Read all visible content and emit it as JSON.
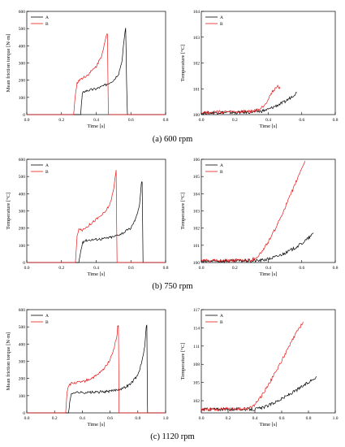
{
  "captions": [
    "(a) 600 rpm",
    "(b) 750 rpm",
    "(c) 1120 rpm"
  ],
  "colors": {
    "A": "#000000",
    "B": "#e8191b"
  },
  "chart_data": [
    {
      "type": "line",
      "panel": "a-torque",
      "xlabel": "Time [s]",
      "ylabel": "Mean friction torque [N·m]",
      "xlim": [
        0,
        0.8
      ],
      "ylim": [
        0,
        600
      ],
      "xticks": [
        0.0,
        0.2,
        0.4,
        0.6,
        0.8
      ],
      "xtick_labels": [
        "0.0",
        "0.2",
        "0.4",
        "0.6",
        "0.8"
      ],
      "yticks": [
        0,
        100,
        200,
        300,
        400,
        500,
        600
      ],
      "ytick_labels": [
        "0",
        "100",
        "200",
        "300",
        "400",
        "500",
        "600"
      ],
      "legend": "top-left",
      "series": [
        {
          "name": "A",
          "x": [
            0,
            0.31,
            0.315,
            0.32,
            0.33,
            0.35,
            0.4,
            0.45,
            0.5,
            0.53,
            0.55,
            0.56,
            0.57,
            0.575,
            0.58,
            0.8
          ],
          "y": [
            0,
            0,
            60,
            120,
            135,
            140,
            150,
            170,
            200,
            240,
            320,
            430,
            510,
            200,
            0,
            0
          ]
        },
        {
          "name": "B",
          "x": [
            0,
            0.27,
            0.28,
            0.29,
            0.3,
            0.35,
            0.4,
            0.43,
            0.45,
            0.46,
            0.465,
            0.47,
            0.8
          ],
          "y": [
            0,
            0,
            120,
            180,
            200,
            230,
            280,
            340,
            420,
            460,
            470,
            0,
            0
          ]
        }
      ]
    },
    {
      "type": "line",
      "panel": "a-temperature",
      "xlabel": "Time [s]",
      "ylabel": "Temperature [°C]",
      "xlim": [
        0,
        0.8
      ],
      "ylim": [
        100,
        104
      ],
      "xticks": [
        0.0,
        0.2,
        0.4,
        0.6,
        0.8
      ],
      "xtick_labels": [
        "0.0",
        "0.2",
        "0.4",
        "0.6",
        "0.8"
      ],
      "yticks": [
        100,
        101,
        102,
        103,
        104
      ],
      "ytick_labels": [
        "100",
        "101",
        "102",
        "103",
        "104"
      ],
      "legend": "top-left",
      "series": [
        {
          "name": "A",
          "x": [
            0,
            0.1,
            0.2,
            0.3,
            0.35,
            0.4,
            0.45,
            0.5,
            0.55,
            0.57
          ],
          "y": [
            100.05,
            100.08,
            100.08,
            100.1,
            100.12,
            100.2,
            100.35,
            100.5,
            100.75,
            100.85
          ]
        },
        {
          "name": "B",
          "x": [
            0,
            0.1,
            0.2,
            0.3,
            0.35,
            0.38,
            0.4,
            0.42,
            0.44,
            0.46,
            0.47
          ],
          "y": [
            100.08,
            100.1,
            100.1,
            100.12,
            100.2,
            100.4,
            100.6,
            100.85,
            101.0,
            101.1,
            101.0
          ]
        }
      ]
    },
    {
      "type": "line",
      "panel": "b-torque",
      "xlabel": "Time [s]",
      "ylabel": "Temperature [°C]",
      "xlim": [
        0,
        0.8
      ],
      "ylim": [
        0,
        600
      ],
      "xticks": [
        0.0,
        0.2,
        0.4,
        0.6,
        0.8
      ],
      "xtick_labels": [
        "0.0",
        "0.2",
        "0.4",
        "0.6",
        "0.8"
      ],
      "yticks": [
        0,
        100,
        200,
        300,
        400,
        500,
        600
      ],
      "ytick_labels": [
        "0",
        "100",
        "200",
        "300",
        "400",
        "500",
        "600"
      ],
      "legend": "top-left",
      "series": [
        {
          "name": "A",
          "x": [
            0,
            0.3,
            0.31,
            0.32,
            0.33,
            0.35,
            0.4,
            0.45,
            0.5,
            0.55,
            0.6,
            0.63,
            0.65,
            0.66,
            0.665,
            0.67,
            0.8
          ],
          "y": [
            0,
            0,
            60,
            110,
            125,
            130,
            135,
            140,
            150,
            170,
            200,
            260,
            340,
            460,
            470,
            0,
            0
          ]
        },
        {
          "name": "B",
          "x": [
            0,
            0.28,
            0.29,
            0.3,
            0.32,
            0.35,
            0.4,
            0.45,
            0.48,
            0.5,
            0.51,
            0.515,
            0.52,
            0.8
          ],
          "y": [
            0,
            0,
            150,
            200,
            190,
            210,
            250,
            290,
            340,
            420,
            500,
            540,
            0,
            0
          ]
        }
      ]
    },
    {
      "type": "line",
      "panel": "b-temperature",
      "xlabel": "Time [s]",
      "ylabel": "Temperature [°C]",
      "xlim": [
        0,
        0.8
      ],
      "ylim": [
        100,
        106
      ],
      "xticks": [
        0.0,
        0.2,
        0.4,
        0.6,
        0.8
      ],
      "xtick_labels": [
        "0.0",
        "0.2",
        "0.4",
        "0.6",
        "0.8"
      ],
      "yticks": [
        100,
        101,
        102,
        103,
        104,
        105,
        106
      ],
      "ytick_labels": [
        "100",
        "101",
        "102",
        "103",
        "104",
        "105",
        "106"
      ],
      "legend": "top-left",
      "series": [
        {
          "name": "A",
          "x": [
            0,
            0.1,
            0.2,
            0.3,
            0.35,
            0.4,
            0.45,
            0.5,
            0.55,
            0.6,
            0.65,
            0.67
          ],
          "y": [
            100.05,
            100.08,
            100.1,
            100.1,
            100.12,
            100.2,
            100.35,
            100.55,
            100.8,
            101.1,
            101.5,
            101.7
          ]
        },
        {
          "name": "B",
          "x": [
            0,
            0.1,
            0.2,
            0.3,
            0.33,
            0.36,
            0.4,
            0.45,
            0.5,
            0.55,
            0.6,
            0.62
          ],
          "y": [
            100.1,
            100.1,
            100.12,
            100.15,
            100.3,
            100.6,
            101.2,
            102.1,
            103.2,
            104.3,
            105.5,
            105.9
          ]
        }
      ]
    },
    {
      "type": "line",
      "panel": "c-torque",
      "xlabel": "Time [s]",
      "ylabel": "Mean friction torque [N·m]",
      "xlim": [
        0,
        1.0
      ],
      "ylim": [
        0,
        600
      ],
      "xticks": [
        0.0,
        0.2,
        0.4,
        0.6,
        0.8,
        1.0
      ],
      "xtick_labels": [
        "0.0",
        "0.2",
        "0.4",
        "0.6",
        "0.8",
        "1.0"
      ],
      "yticks": [
        0,
        100,
        200,
        300,
        400,
        500,
        600
      ],
      "ytick_labels": [
        "0",
        "100",
        "200",
        "300",
        "400",
        "500",
        "600"
      ],
      "legend": "top-left",
      "series": [
        {
          "name": "A",
          "x": [
            0,
            0.3,
            0.31,
            0.32,
            0.34,
            0.4,
            0.5,
            0.6,
            0.7,
            0.75,
            0.8,
            0.83,
            0.85,
            0.86,
            0.865,
            0.87,
            1.0
          ],
          "y": [
            0,
            0,
            60,
            110,
            120,
            118,
            120,
            125,
            145,
            170,
            220,
            300,
            380,
            500,
            510,
            0,
            0
          ]
        },
        {
          "name": "B",
          "x": [
            0,
            0.28,
            0.29,
            0.3,
            0.32,
            0.35,
            0.4,
            0.45,
            0.5,
            0.55,
            0.6,
            0.63,
            0.65,
            0.655,
            0.66,
            0.665,
            1.0
          ],
          "y": [
            0,
            0,
            120,
            160,
            170,
            175,
            180,
            195,
            215,
            250,
            310,
            380,
            450,
            500,
            510,
            0,
            0
          ]
        }
      ]
    },
    {
      "type": "line",
      "panel": "c-temperature",
      "xlabel": "Time [s]",
      "ylabel": "Temperature [°C]",
      "xlim": [
        0,
        1.0
      ],
      "ylim": [
        100,
        117
      ],
      "xticks": [
        0.0,
        0.2,
        0.4,
        0.6,
        0.8,
        1.0
      ],
      "xtick_labels": [
        "0.0",
        "0.2",
        "0.4",
        "0.6",
        "0.8",
        "1.0"
      ],
      "yticks": [
        102,
        105,
        108,
        111,
        114,
        117
      ],
      "ytick_labels": [
        "102",
        "105",
        "108",
        "111",
        "114",
        "117"
      ],
      "legend": "top-left",
      "series": [
        {
          "name": "A",
          "x": [
            0,
            0.1,
            0.2,
            0.3,
            0.4,
            0.45,
            0.5,
            0.6,
            0.7,
            0.8,
            0.86
          ],
          "y": [
            100.6,
            100.6,
            100.6,
            100.6,
            100.6,
            100.8,
            101.2,
            102.3,
            103.6,
            105.0,
            106.0
          ]
        },
        {
          "name": "B",
          "x": [
            0,
            0.1,
            0.2,
            0.3,
            0.35,
            0.38,
            0.4,
            0.45,
            0.5,
            0.55,
            0.6,
            0.65,
            0.7,
            0.76
          ],
          "y": [
            100.6,
            100.6,
            100.6,
            100.6,
            100.7,
            101.0,
            101.4,
            102.8,
            104.6,
            106.5,
            108.6,
            110.7,
            112.8,
            115.0
          ]
        }
      ]
    }
  ]
}
